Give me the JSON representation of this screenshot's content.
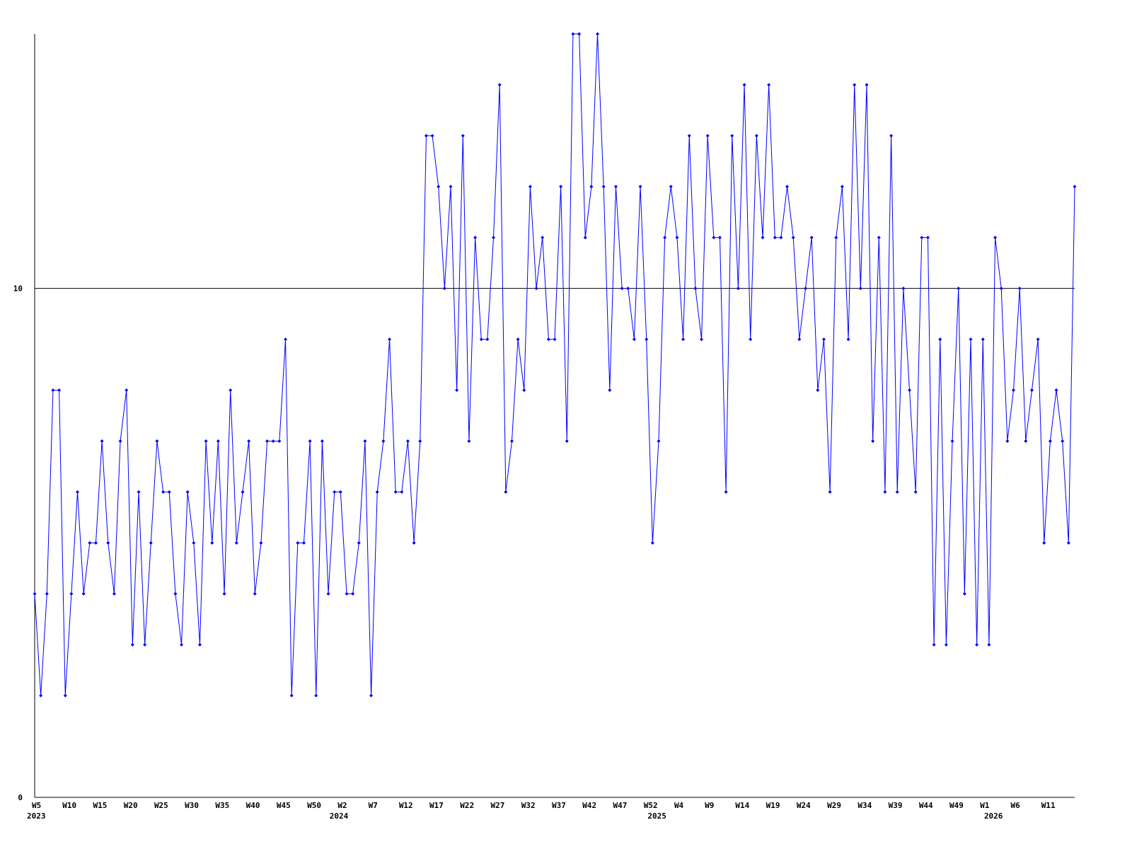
{
  "chart_data": {
    "type": "line",
    "color": "#0000ff",
    "categories": [
      "W5",
      null,
      null,
      null,
      null,
      "W10",
      null,
      null,
      null,
      null,
      "W15",
      null,
      null,
      null,
      null,
      "W20",
      null,
      null,
      null,
      null,
      "W25",
      null,
      null,
      null,
      null,
      "W30",
      null,
      null,
      null,
      null,
      "W35",
      null,
      null,
      null,
      null,
      "W40",
      null,
      null,
      null,
      null,
      "W45",
      null,
      null,
      null,
      null,
      "W50",
      null,
      null,
      null,
      null,
      "W2",
      null,
      null,
      null,
      null,
      "W7",
      null,
      null,
      null,
      null,
      "W12",
      null,
      null,
      null,
      null,
      "W17",
      null,
      null,
      null,
      null,
      "W22",
      null,
      null,
      null,
      null,
      "W27",
      null,
      null,
      null,
      null,
      "W32",
      null,
      null,
      null,
      null,
      "W37",
      null,
      null,
      null,
      null,
      "W42",
      null,
      null,
      null,
      null,
      "W47",
      null,
      null,
      null,
      null,
      "W52",
      null,
      null,
      null,
      null,
      "W4",
      null,
      null,
      null,
      null,
      "W9",
      null,
      null,
      null,
      null,
      "W14",
      null,
      null,
      null,
      null,
      "W19",
      null,
      null,
      null,
      null,
      "W24",
      null,
      null,
      null,
      null,
      "W29",
      null,
      null,
      null,
      null,
      "W34",
      null,
      null,
      null,
      null,
      "W39",
      null,
      null,
      null,
      null,
      "W44",
      null,
      null,
      null,
      null,
      "W49",
      null,
      null,
      null,
      null,
      "W1",
      null,
      null,
      null,
      null,
      "W6",
      null,
      null,
      null,
      null,
      "W11",
      null,
      null,
      null,
      null,
      null
    ],
    "years": [
      "2023",
      null,
      null,
      null,
      null,
      null,
      null,
      null,
      null,
      null,
      null,
      null,
      null,
      null,
      null,
      null,
      null,
      null,
      null,
      null,
      null,
      null,
      null,
      null,
      null,
      null,
      null,
      null,
      null,
      null,
      null,
      null,
      null,
      null,
      null,
      null,
      null,
      null,
      null,
      null,
      null,
      null,
      null,
      null,
      null,
      null,
      null,
      null,
      null,
      "2024",
      null,
      null,
      null,
      null,
      null,
      null,
      null,
      null,
      null,
      null,
      null,
      null,
      null,
      null,
      null,
      null,
      null,
      null,
      null,
      null,
      null,
      null,
      null,
      null,
      null,
      null,
      null,
      null,
      null,
      null,
      null,
      null,
      null,
      null,
      null,
      null,
      null,
      null,
      null,
      null,
      null,
      null,
      null,
      null,
      null,
      null,
      null,
      null,
      null,
      null,
      null,
      "2025",
      null,
      null,
      null,
      null,
      null,
      null,
      null,
      null,
      null,
      null,
      null,
      null,
      null,
      null,
      null,
      null,
      null,
      null,
      null,
      null,
      null,
      null,
      null,
      null,
      null,
      null,
      null,
      null,
      null,
      null,
      null,
      null,
      null,
      null,
      null,
      null,
      null,
      null,
      null,
      null,
      null,
      null,
      null,
      null,
      null,
      null,
      null,
      null,
      null,
      null,
      null,
      null,
      null,
      null,
      "2026",
      null,
      null,
      null,
      null,
      null,
      null,
      null,
      null,
      null,
      null,
      null,
      null,
      null,
      null,
      null
    ],
    "values": [
      4,
      2,
      4,
      8,
      8,
      2,
      4,
      6,
      4,
      5,
      5,
      7,
      5,
      4,
      7,
      8,
      3,
      6,
      3,
      5,
      7,
      6,
      6,
      4,
      3,
      6,
      5,
      3,
      7,
      5,
      7,
      4,
      8,
      5,
      6,
      7,
      4,
      5,
      7,
      7,
      7,
      9,
      2,
      5,
      5,
      7,
      2,
      7,
      4,
      6,
      6,
      4,
      4,
      5,
      7,
      2,
      6,
      7,
      9,
      6,
      6,
      7,
      5,
      7,
      13,
      13,
      12,
      10,
      12,
      8,
      13,
      7,
      11,
      9,
      9,
      11,
      14,
      6,
      7,
      9,
      8,
      12,
      10,
      11,
      9,
      9,
      12,
      7,
      15,
      15,
      11,
      12,
      15,
      12,
      8,
      12,
      10,
      10,
      9,
      12,
      9,
      5,
      7,
      11,
      12,
      11,
      9,
      13,
      10,
      9,
      13,
      11,
      11,
      6,
      13,
      10,
      14,
      9,
      13,
      11,
      14,
      11,
      11,
      12,
      11,
      9,
      10,
      11,
      8,
      9,
      6,
      11,
      12,
      9,
      14,
      10,
      14,
      7,
      11,
      6,
      13,
      6,
      10,
      8,
      6,
      11,
      11,
      3,
      9,
      3,
      7,
      10,
      4,
      9,
      3,
      9,
      3,
      11,
      10,
      7,
      8,
      10,
      7,
      8,
      9,
      5,
      7,
      8,
      7,
      5,
      12
    ],
    "ylim": [
      0,
      15
    ],
    "yticks": [
      0,
      10
    ],
    "grid": true
  }
}
